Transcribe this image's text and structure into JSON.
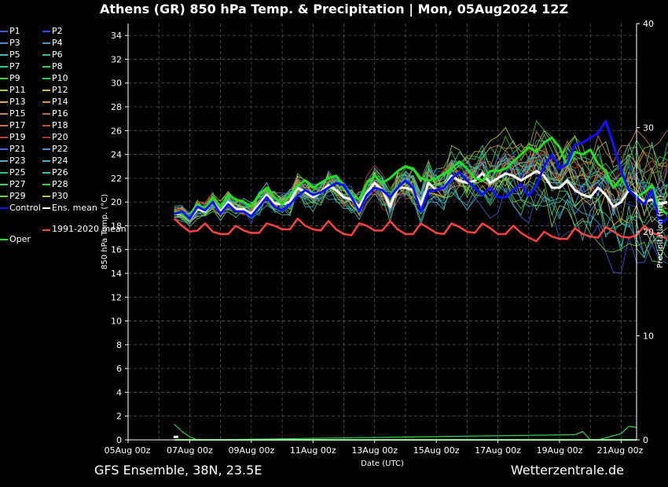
{
  "title": "Athens  (GR)  850 hPa Temp. & Precipitation | Mon, 05Aug2024 12Z",
  "footer_left": "GFS Ensemble, 38N, 23.5E",
  "footer_right": "Wetterzentrale.de",
  "legend": [
    {
      "label": "P1",
      "color": "#3a5ad8"
    },
    {
      "label": "P2",
      "color": "#2a4ae8"
    },
    {
      "label": "P3",
      "color": "#4a8ad8"
    },
    {
      "label": "P4",
      "color": "#3aa0c8"
    },
    {
      "label": "P5",
      "color": "#3ab8b8"
    },
    {
      "label": "P6",
      "color": "#30c080"
    },
    {
      "label": "P7",
      "color": "#30c8a0"
    },
    {
      "label": "P8",
      "color": "#40c860"
    },
    {
      "label": "P9",
      "color": "#50d040"
    },
    {
      "label": "P10",
      "color": "#30d030"
    },
    {
      "label": "P11",
      "color": "#b0c840"
    },
    {
      "label": "P12",
      "color": "#d0c040"
    },
    {
      "label": "P13",
      "color": "#e0b040"
    },
    {
      "label": "P14",
      "color": "#e09030"
    },
    {
      "label": "P15",
      "color": "#d08050"
    },
    {
      "label": "P16",
      "color": "#c06830"
    },
    {
      "label": "P17",
      "color": "#d07040"
    },
    {
      "label": "P18",
      "color": "#c05030"
    },
    {
      "label": "P19",
      "color": "#c04040"
    },
    {
      "label": "P20",
      "color": "#b03030"
    },
    {
      "label": "P21",
      "color": "#3a6ad8"
    },
    {
      "label": "P22",
      "color": "#3a9ae0"
    },
    {
      "label": "P23",
      "color": "#50a8d0"
    },
    {
      "label": "P24",
      "color": "#40b0c0"
    },
    {
      "label": "P25",
      "color": "#30c090"
    },
    {
      "label": "P26",
      "color": "#30c8a8"
    },
    {
      "label": "P27",
      "color": "#40d070"
    },
    {
      "label": "P28",
      "color": "#30d050"
    },
    {
      "label": "P29",
      "color": "#70d030"
    },
    {
      "label": "P30",
      "color": "#c8c030"
    },
    {
      "label": "Control",
      "color": "#1010ff"
    },
    {
      "label": "Ens. mean",
      "color": "#ffffff"
    },
    {
      "label": "Oper",
      "color": "#20e020"
    },
    {
      "label": "1991-2020 mean",
      "color": "#ff4040"
    }
  ],
  "chart_data": {
    "type": "line",
    "title": "Athens  (GR)  850 hPa Temp. & Precipitation | Mon, 05Aug2024 12Z",
    "xlabel": "Date (UTC)",
    "ylabel": "850 hPa Temp. (°C)",
    "y2label": "Precipitation (mm)",
    "x_ticks": [
      "05Aug 00z",
      "07Aug 00z",
      "09Aug 00z",
      "11Aug 00z",
      "13Aug 00z",
      "15Aug 00z",
      "17Aug 00z",
      "19Aug 00z",
      "21Aug 00z"
    ],
    "xlim_days": [
      0,
      16.5
    ],
    "ylim": [
      0,
      35
    ],
    "y_ticks": [
      0,
      2,
      4,
      6,
      8,
      10,
      12,
      14,
      16,
      18,
      20,
      22,
      24,
      26,
      28,
      30,
      32,
      34
    ],
    "y2lim": [
      0,
      40
    ],
    "y2_ticks": [
      0,
      10,
      20,
      30,
      40
    ],
    "grid": true,
    "series_start_day": 1.5,
    "series_step_days": 0.25,
    "series": [
      {
        "name": "Control",
        "color": "#1010ff",
        "width": 3,
        "values": [
          19.0,
          19.2,
          18.6,
          19.6,
          19.3,
          20.0,
          19.0,
          19.8,
          19.2,
          19.2,
          18.8,
          19.6,
          20.4,
          19.6,
          19.3,
          19.8,
          20.5,
          21.0,
          20.6,
          20.8,
          21.2,
          21.6,
          21.4,
          20.4,
          19.2,
          20.6,
          21.2,
          21.0,
          20.4,
          21.2,
          21.8,
          21.2,
          19.2,
          20.9,
          21.0,
          21.2,
          22.0,
          22.5,
          21.8,
          21.2,
          20.6,
          21.2,
          20.4,
          20.4,
          21.0,
          21.5,
          20.5,
          21.4,
          23.0,
          24.0,
          22.8,
          23.2,
          24.8,
          25.0,
          25.4,
          25.8,
          26.8,
          24.8,
          22.6,
          21.0,
          20.4,
          19.8,
          21.0,
          18.2,
          18.6
        ]
      },
      {
        "name": "Oper",
        "color": "#20e020",
        "width": 3,
        "values": [
          19.2,
          19.0,
          18.6,
          19.8,
          19.4,
          20.4,
          19.6,
          20.6,
          20.2,
          20.0,
          19.6,
          20.6,
          21.2,
          20.4,
          19.8,
          20.6,
          21.4,
          21.8,
          21.2,
          21.6,
          22.0,
          22.2,
          21.4,
          20.6,
          20.2,
          21.6,
          22.2,
          21.6,
          22.0,
          22.6,
          23.0,
          22.8,
          22.0,
          21.8,
          22.0,
          22.4,
          22.8,
          23.4,
          22.8,
          22.0,
          21.8,
          22.6,
          22.6,
          22.8,
          23.4,
          24.0,
          24.6,
          24.2,
          25.0,
          25.4,
          24.6,
          23.0,
          24.2,
          24.0,
          24.4,
          23.2,
          22.6,
          21.2,
          22.0,
          21.0,
          20.4,
          20.8,
          21.4,
          19.4,
          19.0
        ]
      },
      {
        "name": "Ens. mean",
        "color": "#ffffff",
        "width": 3,
        "values": [
          19.0,
          19.0,
          18.6,
          19.4,
          19.2,
          20.0,
          19.2,
          20.0,
          19.4,
          19.4,
          19.0,
          19.8,
          20.6,
          19.9,
          19.8,
          20.0,
          21.2,
          20.8,
          20.4,
          20.8,
          21.4,
          21.0,
          20.4,
          20.2,
          19.6,
          20.8,
          21.6,
          21.0,
          19.6,
          21.2,
          21.2,
          21.0,
          19.8,
          21.6,
          21.0,
          21.2,
          22.2,
          21.8,
          21.6,
          21.8,
          22.4,
          21.6,
          22.0,
          22.4,
          22.2,
          21.8,
          22.2,
          22.6,
          22.2,
          21.2,
          21.2,
          21.8,
          21.0,
          20.6,
          20.4,
          21.2,
          20.6,
          19.6,
          20.0,
          21.0,
          20.6,
          20.0,
          20.2,
          19.8,
          20.0
        ]
      },
      {
        "name": "1991-2020 mean",
        "color": "#ff4040",
        "width": 2.5,
        "values": [
          18.6,
          18.0,
          17.5,
          17.6,
          18.2,
          17.5,
          17.3,
          17.3,
          18.0,
          17.6,
          17.4,
          17.4,
          18.2,
          18.0,
          17.7,
          17.7,
          18.6,
          18.0,
          17.7,
          17.6,
          18.4,
          17.7,
          17.3,
          17.2,
          18.2,
          18.0,
          17.6,
          17.6,
          18.4,
          17.7,
          17.3,
          17.3,
          18.2,
          17.8,
          17.4,
          17.3,
          18.2,
          17.9,
          17.5,
          17.4,
          18.2,
          17.8,
          17.3,
          17.3,
          18.0,
          17.4,
          17.0,
          16.7,
          17.5,
          17.1,
          16.9,
          16.9,
          17.8,
          17.3,
          17.1,
          17.0,
          17.9,
          17.5,
          17.1,
          17.0,
          17.2,
          18.0,
          17.4,
          17.2,
          16.9
        ]
      }
    ],
    "ensemble_members": {
      "count": 30,
      "spread_note": "thin coloured lines P1–P30 around the ensemble mean, widening after 15Aug (approx. 12–28 °C)"
    },
    "precipitation_mm": {
      "x_days": [
        1.5,
        1.75,
        2.0,
        2.25,
        2.5,
        14.5,
        14.75,
        15.0,
        15.25,
        16.0,
        16.25,
        16.5
      ],
      "values": [
        1.5,
        0.8,
        0.3,
        0.0,
        0.0,
        0.5,
        0.8,
        0.0,
        0.0,
        0.6,
        1.3,
        1.2
      ]
    }
  }
}
